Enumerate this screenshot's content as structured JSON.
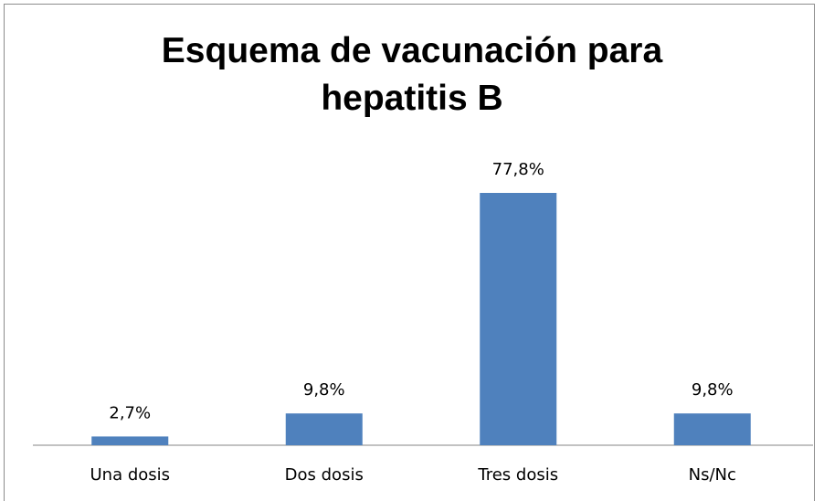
{
  "chart_data": {
    "type": "bar",
    "title": "Esquema de vacunación para hepatitis B",
    "categories": [
      "Una dosis",
      "Dos dosis",
      "Tres dosis",
      "Ns/Nc"
    ],
    "values": [
      2.7,
      9.8,
      77.8,
      9.8
    ],
    "value_labels": [
      "2,7%",
      "9,8%",
      "77,8%",
      "9,8%"
    ],
    "color": "#4f81bd"
  }
}
